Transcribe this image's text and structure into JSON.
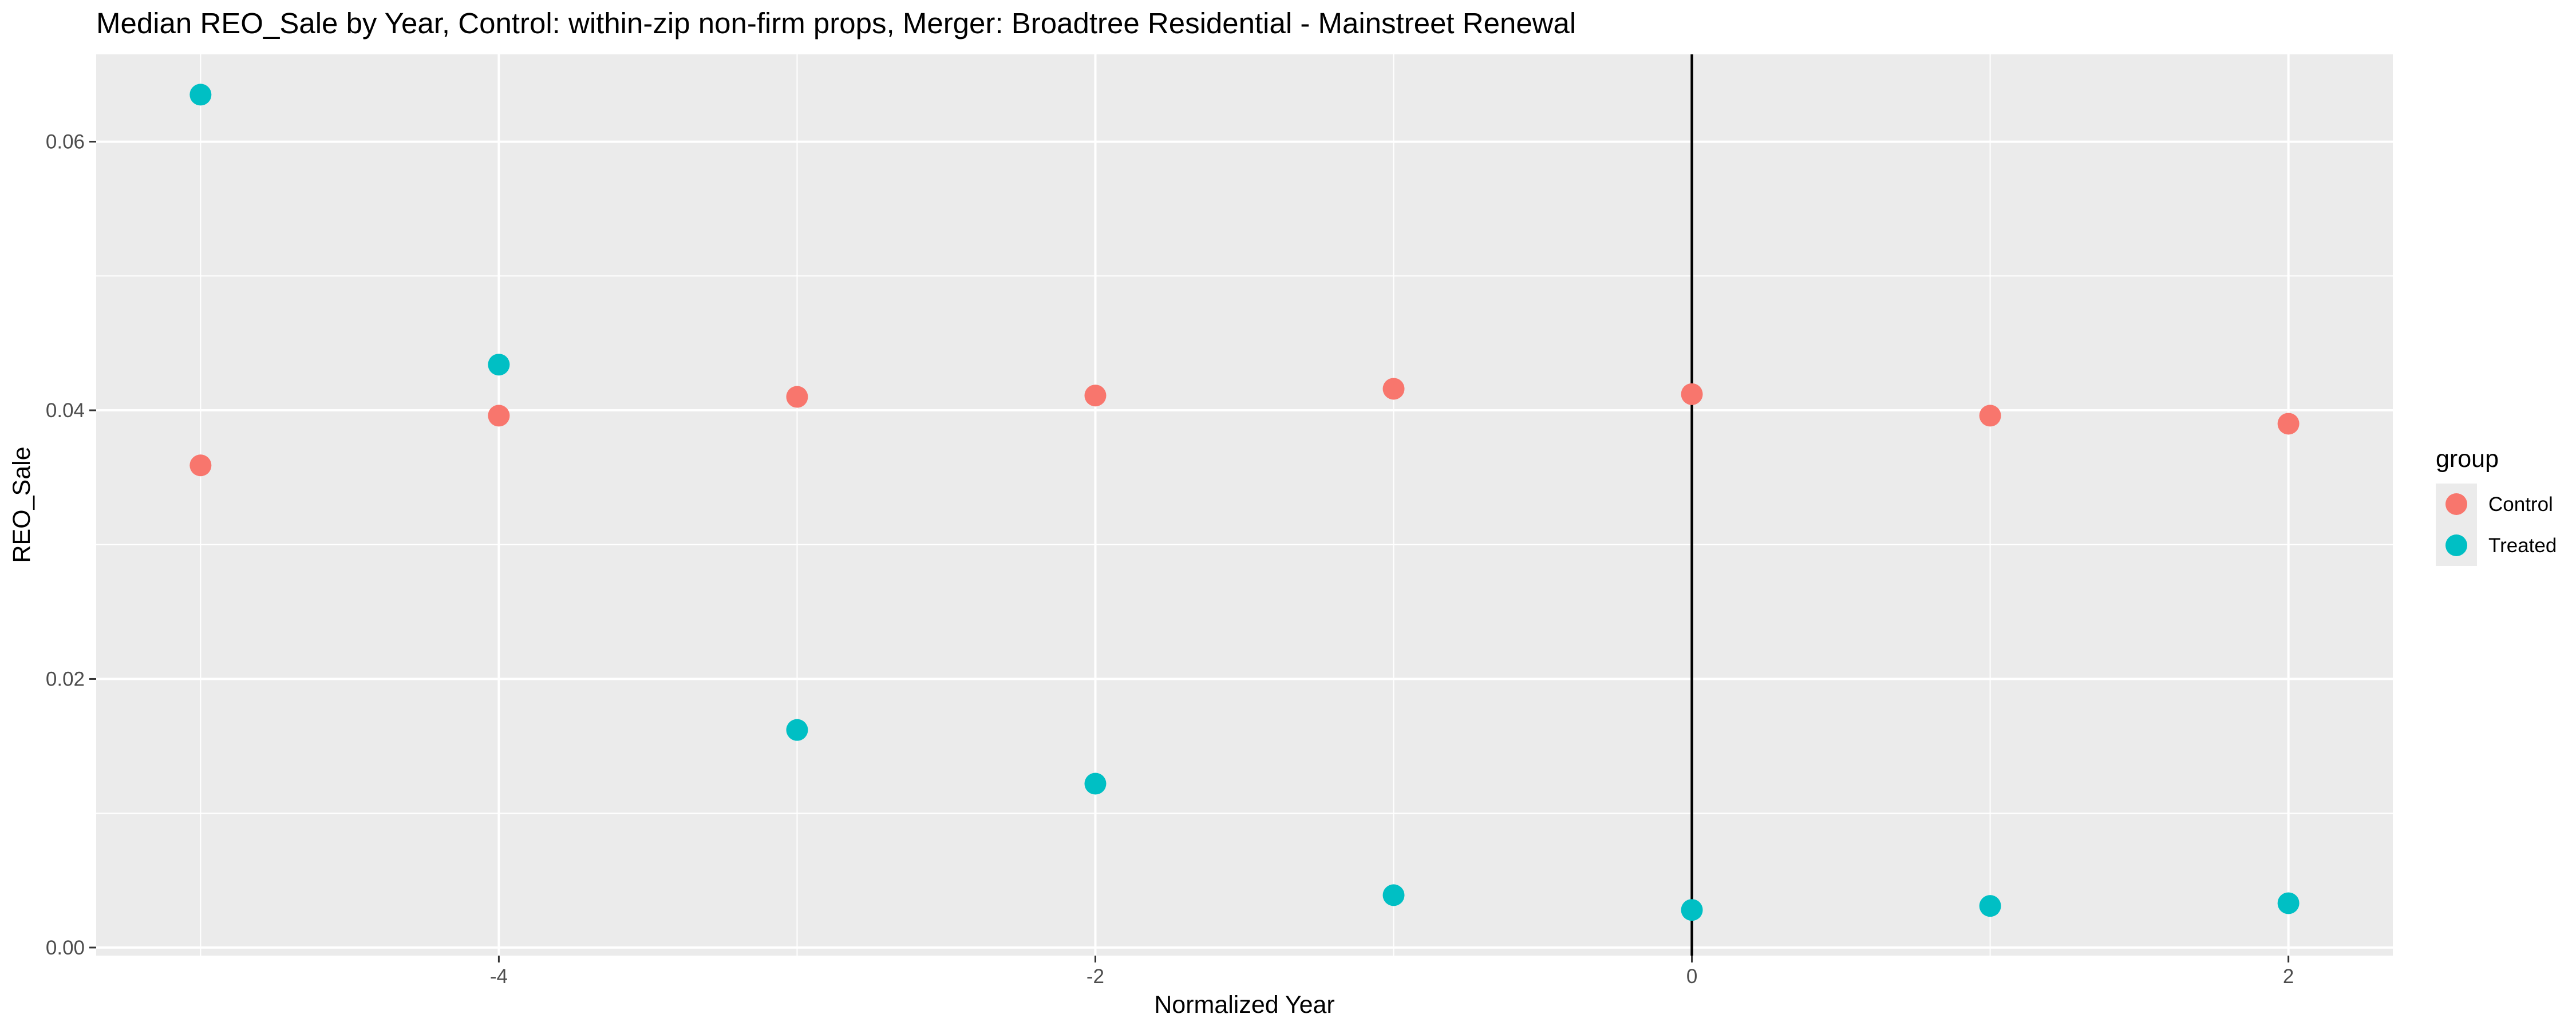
{
  "chart_data": {
    "type": "scatter",
    "title": "Median REO_Sale by Year, Control: within-zip non-firm props, Merger: Broadtree Residential - Mainstreet Renewal",
    "xlabel": "Normalized Year",
    "ylabel": "REO_Sale",
    "xlim": [
      -5.35,
      2.35
    ],
    "ylim": [
      -0.0006,
      0.0665
    ],
    "x_ticks": [
      -4,
      -2,
      0,
      2
    ],
    "y_ticks": [
      0.0,
      0.02,
      0.04,
      0.06
    ],
    "x_tick_labels": [
      "-4",
      "-2",
      "0",
      "2"
    ],
    "y_tick_labels": [
      "0.00",
      "0.02",
      "0.04",
      "0.06"
    ],
    "vline_x": 0,
    "grid": true,
    "legend_title": "group",
    "legend_position": "right",
    "series": [
      {
        "name": "Control",
        "color": "#F8766D",
        "x": [
          -5,
          -4,
          -3,
          -2,
          -1,
          0,
          1,
          2
        ],
        "y": [
          0.0359,
          0.0396,
          0.041,
          0.0411,
          0.0416,
          0.0412,
          0.0396,
          0.039
        ]
      },
      {
        "name": "Treated",
        "color": "#00BFC4",
        "x": [
          -5,
          -4,
          -3,
          -2,
          -1,
          0,
          1,
          2
        ],
        "y": [
          0.0635,
          0.0434,
          0.0162,
          0.0122,
          0.0039,
          0.0028,
          0.0031,
          0.0033
        ]
      }
    ]
  }
}
